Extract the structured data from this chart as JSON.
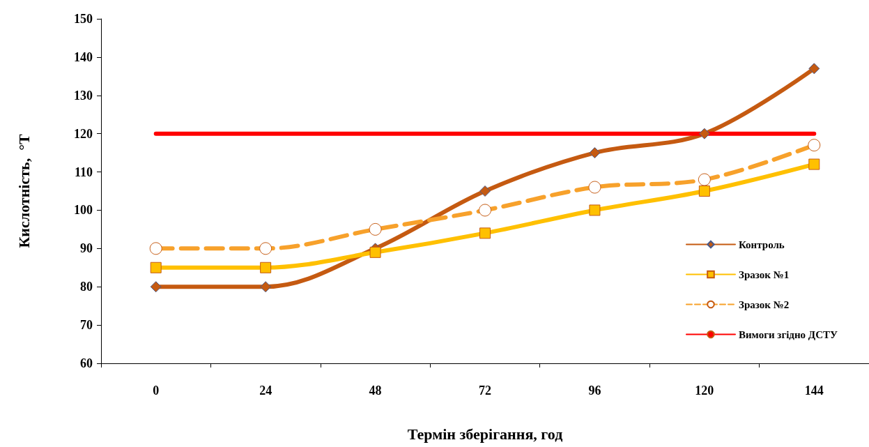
{
  "chart_data": {
    "type": "line",
    "xlabel": "Термін зберігання, год",
    "ylabel": "Кислотність,  °Т",
    "categories": [
      "0",
      "24",
      "48",
      "72",
      "96",
      "120",
      "144"
    ],
    "series": [
      {
        "name": "Контроль",
        "color": "#c55a11",
        "values": [
          80,
          80,
          90,
          105,
          115,
          120,
          137
        ],
        "marker": "diamond",
        "line_style": "solid"
      },
      {
        "name": "Зразок №1",
        "color": "#ffc000",
        "values": [
          85,
          85,
          89,
          94,
          100,
          105,
          112
        ],
        "marker": "square",
        "line_style": "solid"
      },
      {
        "name": "Зразок №2",
        "color": "#f7a12b",
        "values": [
          90,
          90,
          95,
          100,
          106,
          108,
          117
        ],
        "marker": "circle",
        "line_style": "dashed"
      },
      {
        "name": "Вимоги згідно ДСТУ",
        "color": "#ff0000",
        "values": [
          120,
          120,
          120,
          120,
          120,
          120,
          120
        ],
        "marker": "none",
        "line_style": "solid"
      }
    ],
    "ylim": [
      60,
      150
    ],
    "yticks": [
      60,
      70,
      80,
      90,
      100,
      110,
      120,
      130,
      140,
      150
    ],
    "grid": false,
    "legend": "right"
  }
}
